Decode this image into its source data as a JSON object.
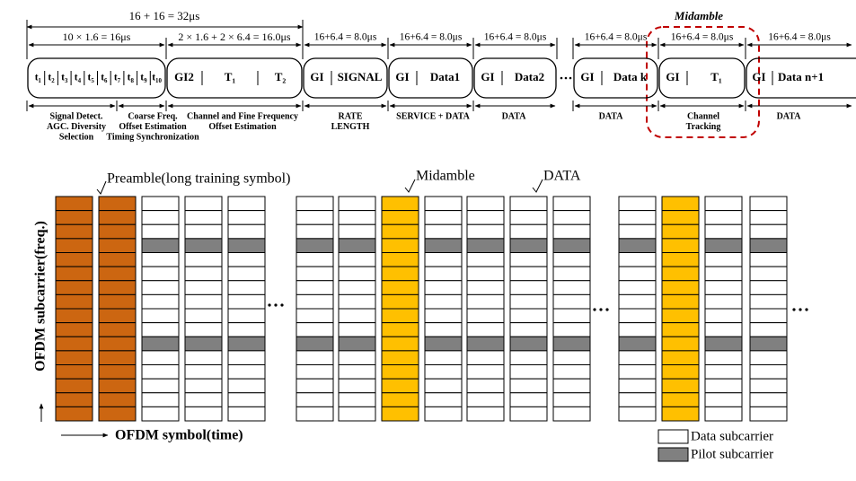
{
  "timing": {
    "total": "16 + 16 = 32μs",
    "midamble_label": "Midamble",
    "segments": [
      {
        "duration": "10 × 1.6 = 16μs",
        "fields": [
          "t₁",
          "t₂",
          "t₃",
          "t₄",
          "t₅",
          "t₆",
          "t₇",
          "t₈",
          "t₉",
          "t₁₀"
        ]
      },
      {
        "duration": "2 × 1.6 + 2 × 6.4 = 16.0μs",
        "fields": [
          "GI2",
          "T₁",
          "T₂"
        ]
      },
      {
        "duration": "16+6.4 = 8.0μs",
        "fields": [
          "GI",
          "SIGNAL"
        ]
      },
      {
        "duration": "16+6.4 = 8.0μs",
        "fields": [
          "GI",
          "Data1"
        ]
      },
      {
        "duration": "16+6.4 = 8.0μs",
        "fields": [
          "GI",
          "Data2"
        ]
      },
      {
        "duration": "16+6.4 = 8.0μs",
        "fields": [
          "GI",
          "Data k"
        ]
      },
      {
        "duration": "16+6.4 = 8.0μs",
        "fields": [
          "GI",
          "T₁"
        ]
      },
      {
        "duration": "16+6.4 = 8.0μs",
        "fields": [
          "GI",
          "Data n+1"
        ]
      }
    ],
    "functions": [
      [
        "Signal Detect.",
        "AGC. Diversity",
        "Selection"
      ],
      [
        "Coarse Freq.",
        "Offset Estimation",
        "Timing Synchronization"
      ],
      [
        "Channel and Fine Frequency",
        "Offset Estimation"
      ],
      [
        "RATE",
        "LENGTH"
      ],
      [
        "SERVICE + DATA"
      ],
      [
        "DATA"
      ],
      [
        "DATA"
      ],
      [
        "Channel",
        "Tracking"
      ],
      [
        "DATA"
      ]
    ]
  },
  "grid": {
    "preamble_label": "Preamble(long training symbol)",
    "midamble_label": "Midamble",
    "data_label": "DATA",
    "y_axis": "OFDM subcarrier(freq.)",
    "x_axis": "OFDM symbol(time)",
    "legend": [
      "Data subcarrier",
      "Pilot subcarrier"
    ]
  }
}
